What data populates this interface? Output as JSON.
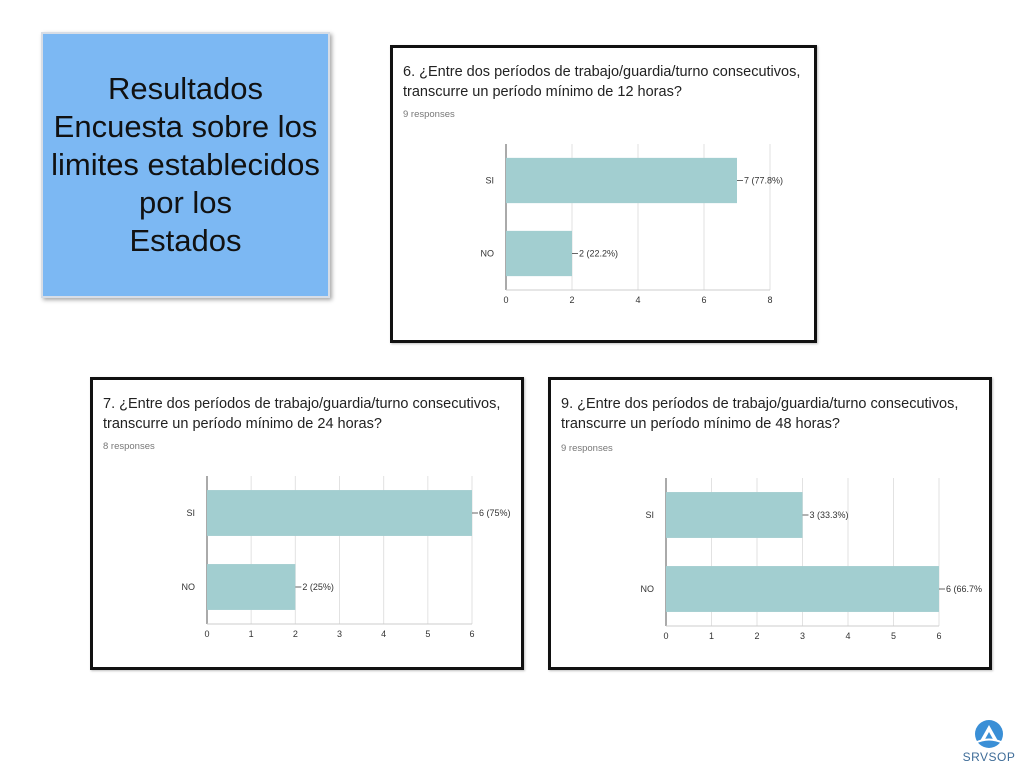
{
  "title": {
    "lines": [
      "Resultados",
      "Encuesta sobre los",
      "limites establecidos",
      "por los",
      "Estados"
    ]
  },
  "logo": {
    "text": "SRVSOP",
    "icon": "srvsop-logo-icon"
  },
  "colors": {
    "bar": "#a2ced0",
    "grid": "#e2e2e2",
    "axis": "#555555"
  },
  "chart_data": [
    {
      "type": "bar",
      "orientation": "horizontal",
      "question_line1": "6. ¿Entre dos períodos de trabajo/guardia/turno consecutivos,",
      "question_line2": "transcurre un período mínimo de 12 horas?",
      "responses": "9 responses",
      "categories": [
        "SI",
        "NO"
      ],
      "values": [
        7,
        2
      ],
      "labels": [
        "7 (77.8%)",
        "2 (22.2%)"
      ],
      "xlim": [
        0,
        8
      ],
      "ticks": [
        "0",
        "2",
        "4",
        "6",
        "8"
      ],
      "grid": true
    },
    {
      "type": "bar",
      "orientation": "horizontal",
      "question_line1": "7. ¿Entre dos períodos de trabajo/guardia/turno consecutivos,",
      "question_line2": "transcurre un período mínimo de 24 horas?",
      "responses": "8 responses",
      "categories": [
        "SI",
        "NO"
      ],
      "values": [
        6,
        2
      ],
      "labels": [
        "6 (75%)",
        "2 (25%)"
      ],
      "xlim": [
        0,
        6
      ],
      "ticks": [
        "0",
        "1",
        "2",
        "3",
        "4",
        "5",
        "6"
      ],
      "grid": true
    },
    {
      "type": "bar",
      "orientation": "horizontal",
      "question_line1": "9. ¿Entre dos períodos de trabajo/guardia/turno consecutivos,",
      "question_line2": "transcurre un período mínimo de 48 horas?",
      "responses": "9 responses",
      "categories": [
        "SI",
        "NO"
      ],
      "values": [
        3,
        6
      ],
      "labels": [
        "3 (33.3%)",
        "6 (66.7%"
      ],
      "xlim": [
        0,
        6
      ],
      "ticks": [
        "0",
        "1",
        "2",
        "3",
        "4",
        "5",
        "6"
      ],
      "grid": true
    }
  ]
}
